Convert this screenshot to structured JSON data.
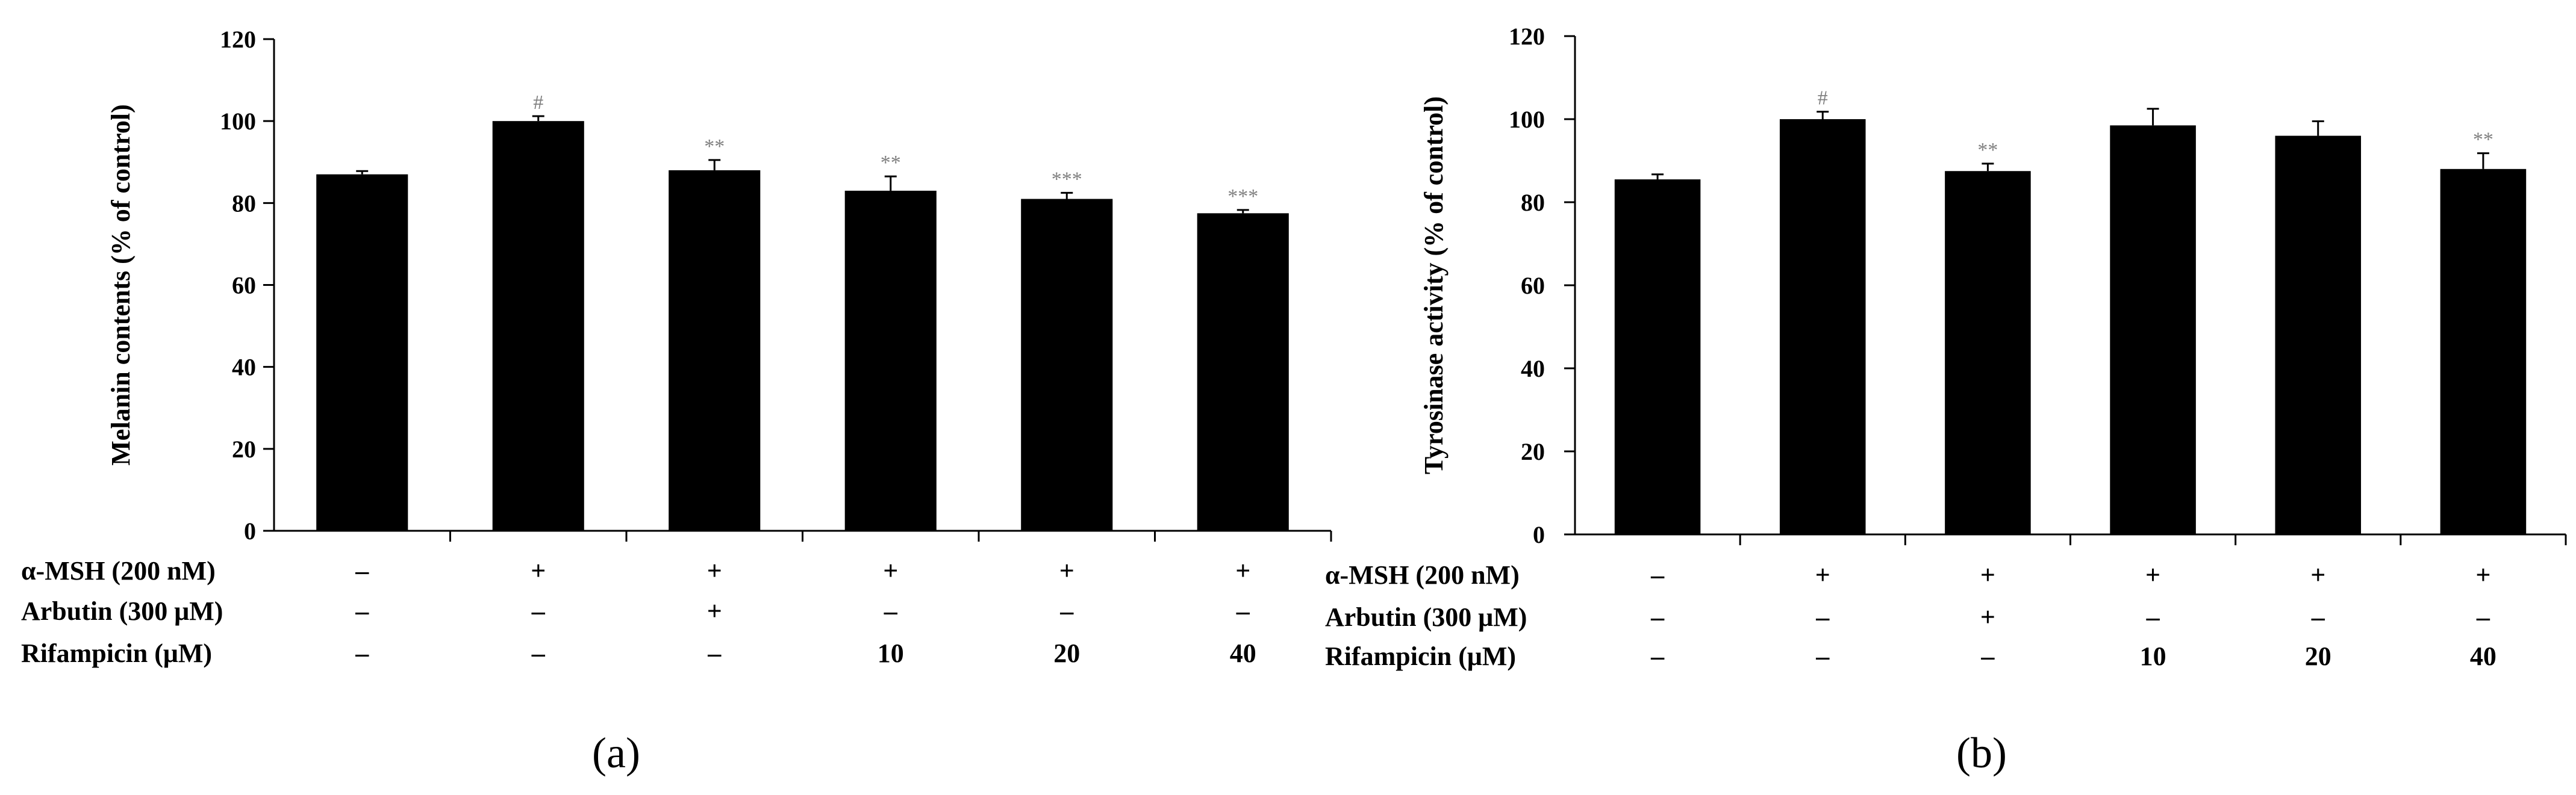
{
  "colors": {
    "bar": "#000000",
    "significance": "#808080",
    "axis": "#000000"
  },
  "chart_data": [
    {
      "type": "bar",
      "panel_label": "(a)",
      "ylabel": "Melanin contents (% of control)",
      "ylim": [
        0,
        120
      ],
      "yticks": [
        0,
        20,
        40,
        60,
        80,
        100,
        120
      ],
      "values": [
        87,
        100,
        88,
        83,
        81,
        77.5
      ],
      "errors": [
        0.8,
        1.2,
        2.5,
        3.5,
        1.5,
        0.8
      ],
      "significance": [
        "",
        "#",
        "**",
        "**",
        "***",
        "***"
      ],
      "condition_rows": [
        {
          "label": "α-MSH (200 nM)",
          "values": [
            "–",
            "+",
            "+",
            "+",
            "+",
            "+"
          ]
        },
        {
          "label": "Arbutin (300 μM)",
          "values": [
            "–",
            "–",
            "+",
            "–",
            "–",
            "–"
          ]
        },
        {
          "label": "Rifampicin (μM)",
          "values": [
            "–",
            "–",
            "–",
            "10",
            "20",
            "40"
          ]
        }
      ]
    },
    {
      "type": "bar",
      "panel_label": "(b)",
      "ylabel": "Tyrosinase activity (% of control)",
      "ylim": [
        0,
        120
      ],
      "yticks": [
        0,
        20,
        40,
        60,
        80,
        100,
        120
      ],
      "values": [
        85.5,
        100,
        87.5,
        98.5,
        96,
        88
      ],
      "errors": [
        1.2,
        1.8,
        1.8,
        4,
        3.5,
        3.8
      ],
      "significance": [
        "",
        "#",
        "**",
        "",
        "",
        "**"
      ],
      "condition_rows": [
        {
          "label": "α-MSH (200 nM)",
          "values": [
            "–",
            "+",
            "+",
            "+",
            "+",
            "+"
          ]
        },
        {
          "label": "Arbutin (300 μM)",
          "values": [
            "–",
            "–",
            "+",
            "–",
            "–",
            "–"
          ]
        },
        {
          "label": "Rifampicin (μM)",
          "values": [
            "–",
            "–",
            "–",
            "10",
            "20",
            "40"
          ]
        }
      ]
    }
  ]
}
